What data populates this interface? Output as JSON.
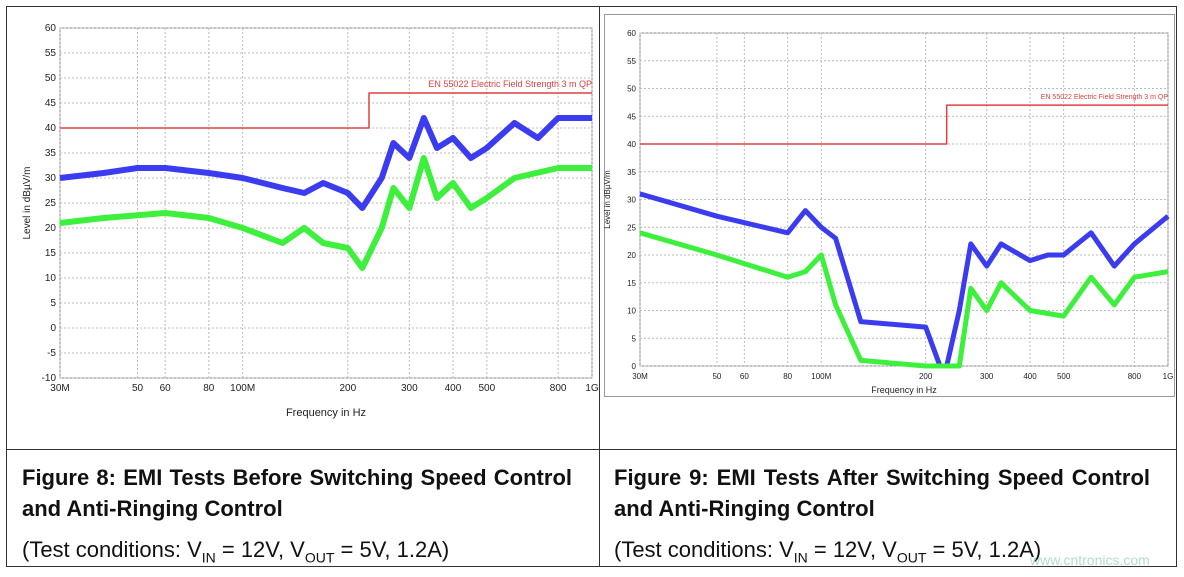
{
  "chart_data": [
    {
      "type": "line",
      "x_scale": "log",
      "grid": true,
      "ylabel": "Level in dBµV/m",
      "xlabel": "Frequency in Hz",
      "limit_label": "EN 55022 Electric Field Strength 3 m QP",
      "xlim": [
        30,
        1000
      ],
      "ylim": [
        -10,
        60
      ],
      "xticks": [
        {
          "value": 30,
          "label": "30M"
        },
        50,
        60,
        80,
        {
          "value": 100,
          "label": "100M"
        },
        200,
        300,
        400,
        500,
        800,
        {
          "value": 1000,
          "label": "1G"
        }
      ],
      "yticks": [
        -10,
        -5,
        0,
        5,
        10,
        15,
        20,
        25,
        30,
        35,
        40,
        45,
        50,
        55,
        60
      ],
      "series": [
        {
          "color": "#e04040",
          "x": [
            30,
            230,
            230,
            1000
          ],
          "values": [
            40,
            40,
            47,
            47
          ]
        },
        {
          "color": "#3b3bf0",
          "x": [
            30,
            40,
            50,
            60,
            80,
            100,
            130,
            150,
            170,
            200,
            220,
            250,
            270,
            300,
            330,
            360,
            400,
            450,
            500,
            600,
            700,
            800,
            1000
          ],
          "values": [
            30,
            31,
            32,
            32,
            31,
            30,
            28,
            27,
            29,
            27,
            24,
            30,
            37,
            34,
            42,
            36,
            38,
            34,
            36,
            41,
            38,
            42,
            42
          ]
        },
        {
          "color": "#3cf03c",
          "x": [
            30,
            40,
            60,
            80,
            100,
            130,
            150,
            170,
            200,
            220,
            250,
            270,
            300,
            330,
            360,
            400,
            450,
            500,
            600,
            800,
            1000
          ],
          "values": [
            21,
            22,
            23,
            22,
            20,
            17,
            20,
            17,
            16,
            12,
            20,
            28,
            24,
            34,
            26,
            29,
            24,
            26,
            30,
            32,
            32
          ]
        }
      ]
    },
    {
      "type": "line",
      "x_scale": "log",
      "grid": true,
      "ylabel": "Level in dBµV/m",
      "xlabel": "Frequency in Hz",
      "limit_label": "EN 55022 Electric Field Strength 3 m QP",
      "xlim": [
        30,
        1000
      ],
      "ylim": [
        0,
        60
      ],
      "xticks": [
        {
          "value": 30,
          "label": "30M"
        },
        50,
        60,
        80,
        {
          "value": 100,
          "label": "100M"
        },
        200,
        300,
        400,
        500,
        800,
        {
          "value": 1000,
          "label": "1G"
        }
      ],
      "yticks": [
        0,
        5,
        10,
        15,
        20,
        25,
        30,
        35,
        40,
        45,
        50,
        55,
        60
      ],
      "series": [
        {
          "color": "#e04040",
          "x": [
            30,
            230,
            230,
            1000
          ],
          "values": [
            40,
            40,
            47,
            47
          ]
        },
        {
          "color": "#3b3bf0",
          "x": [
            30,
            50,
            80,
            90,
            100,
            110,
            130,
            200,
            220,
            230,
            250,
            270,
            300,
            330,
            400,
            450,
            500,
            600,
            700,
            800,
            1000
          ],
          "values": [
            31,
            27,
            24,
            28,
            25,
            23,
            8,
            7,
            0,
            0,
            10,
            22,
            18,
            22,
            19,
            20,
            20,
            24,
            18,
            22,
            27
          ]
        },
        {
          "color": "#3cf03c",
          "x": [
            30,
            50,
            80,
            90,
            100,
            110,
            130,
            200,
            230,
            250,
            270,
            300,
            330,
            400,
            500,
            600,
            700,
            800,
            1000
          ],
          "values": [
            24,
            20,
            16,
            17,
            20,
            11,
            1,
            0,
            0,
            0,
            14,
            10,
            15,
            10,
            9,
            16,
            11,
            16,
            17
          ]
        }
      ]
    }
  ],
  "captions": [
    {
      "title": "Figure 8: EMI Tests Before Switching Speed Control and Anti-Ringing Control",
      "conditions": [
        "(Test conditions: V",
        "IN",
        " = 12V, V",
        "OUT",
        " = 5V, 1.2A)"
      ]
    },
    {
      "title": "Figure 9: EMI Tests After Switching Speed Control and Anti-Ringing Control",
      "conditions": [
        "(Test conditions: V",
        "IN",
        " = 12V, V",
        "OUT",
        " = 5V, 1.2A)"
      ]
    }
  ],
  "watermark": "www.cntronics.com"
}
